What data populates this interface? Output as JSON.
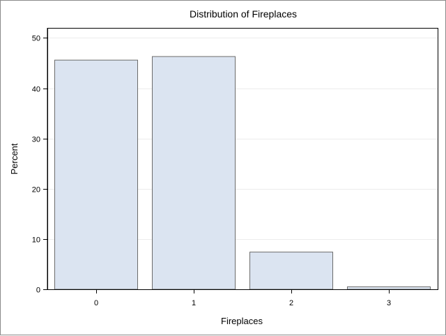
{
  "chart_data": {
    "type": "bar",
    "title": "Distribution of Fireplaces",
    "xlabel": "Fireplaces",
    "ylabel": "Percent",
    "categories": [
      "0",
      "1",
      "2",
      "3"
    ],
    "values": [
      45.6,
      46.3,
      7.4,
      0.5
    ],
    "ylim": [
      0,
      52
    ],
    "yticks": [
      "0",
      "10",
      "20",
      "30",
      "40",
      "50"
    ],
    "grid": true,
    "bar_fill": "#dbe4f1",
    "bar_stroke": "#6b6b6b",
    "grid_color": "#ececec"
  }
}
